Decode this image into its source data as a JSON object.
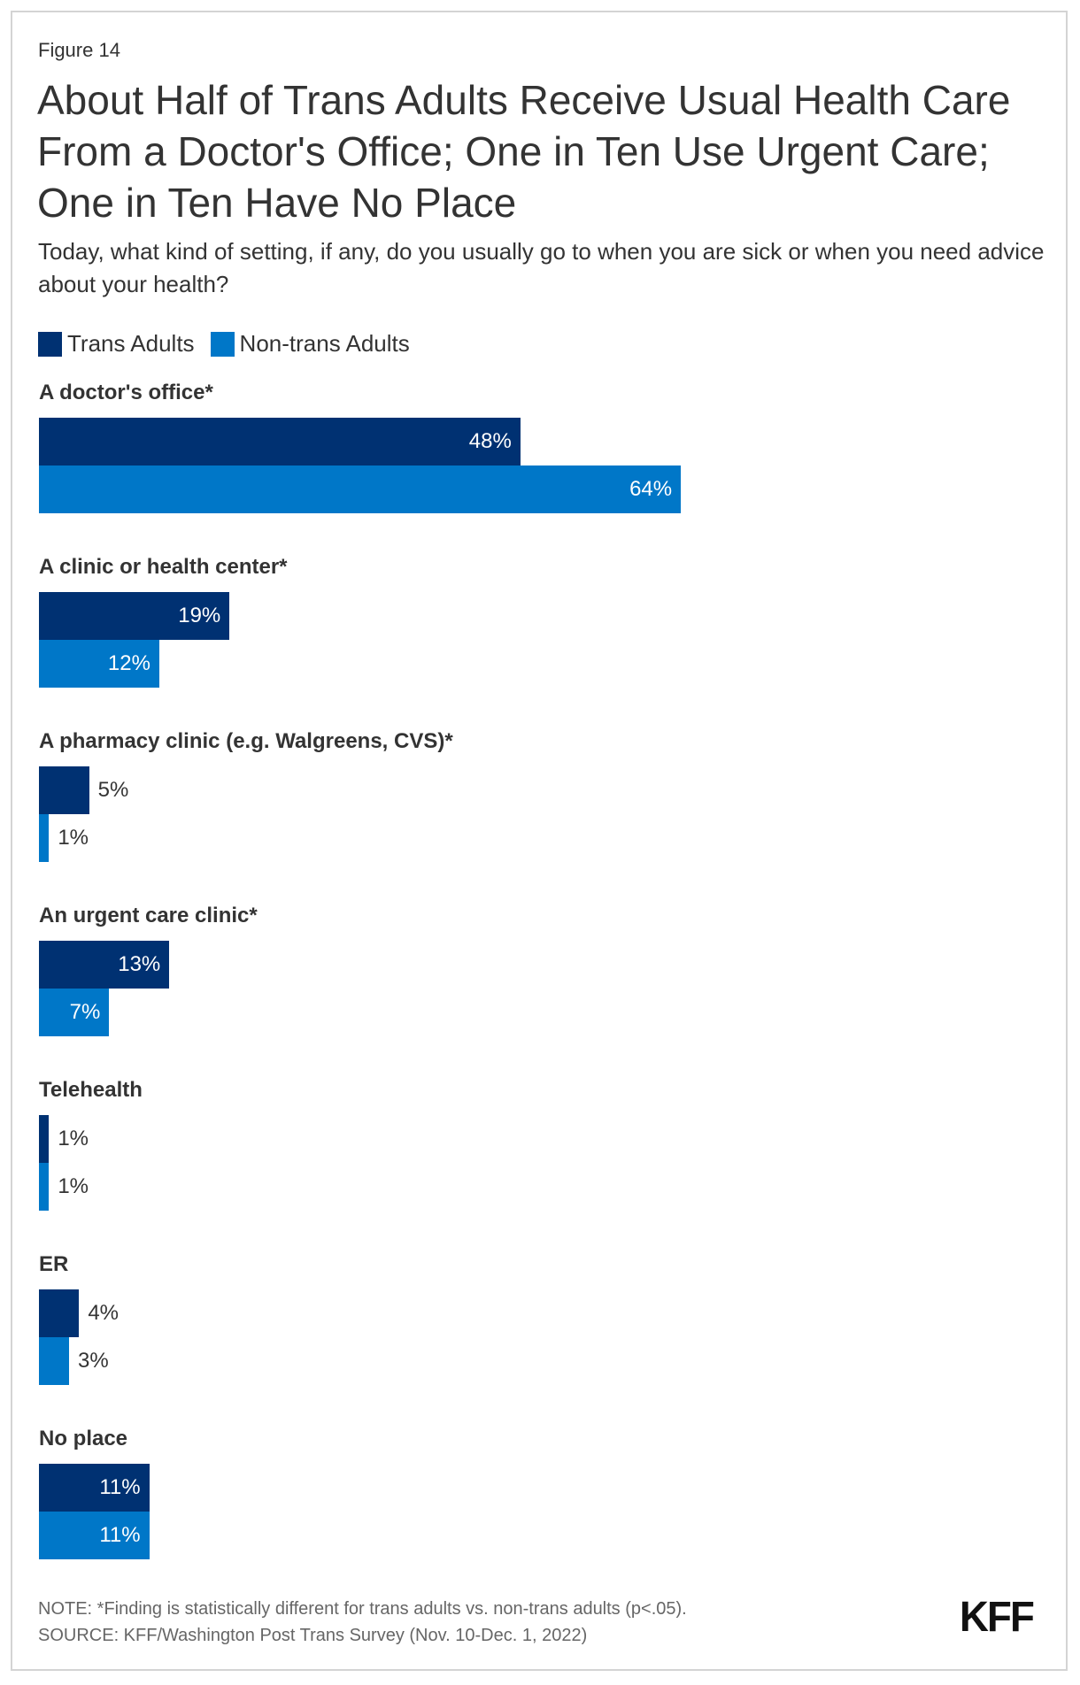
{
  "figure_label": "Figure 14",
  "chart_data": {
    "type": "bar",
    "orientation": "horizontal",
    "title": "About Half of Trans Adults Receive Usual Health Care From a Doctor's Office; One in Ten Use Urgent Care; One in Ten Have No Place",
    "subtitle": "Today, what kind of setting, if any, do you usually go to when you are sick or when you need advice about your health?",
    "categories": [
      "A doctor's office*",
      "A clinic or health center*",
      "A pharmacy clinic (e.g. Walgreens, CVS)*",
      "An urgent care clinic*",
      "Telehealth",
      "ER",
      "No place"
    ],
    "series": [
      {
        "name": "Trans Adults",
        "color": "#003172",
        "values": [
          48,
          19,
          5,
          13,
          1,
          4,
          11
        ],
        "labels": [
          "48%",
          "19%",
          "5%",
          "13%",
          "1%",
          "4%",
          "11%"
        ]
      },
      {
        "name": "Non-trans Adults",
        "color": "#0077c8",
        "values": [
          64,
          12,
          1,
          7,
          1,
          3,
          11
        ],
        "labels": [
          "64%",
          "12%",
          "1%",
          "7%",
          "1%",
          "3%",
          "11%"
        ]
      }
    ],
    "xlim": [
      0,
      100
    ],
    "grid": false,
    "legend_position": "top-left"
  },
  "footer": {
    "note": "NOTE: *Finding is statistically different for trans adults vs. non-trans adults (p<.05).",
    "source": "SOURCE: KFF/Washington Post Trans Survey (Nov. 10-Dec. 1, 2022)"
  },
  "logo": "KFF"
}
